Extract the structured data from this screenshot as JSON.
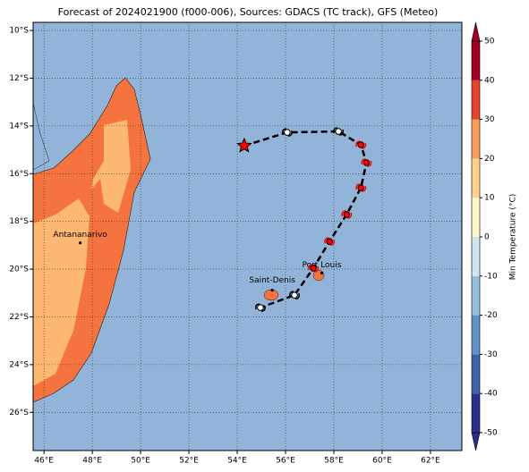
{
  "chart_data": {
    "type": "map",
    "title": "Forecast of 2024021900 (f000-006), Sources: GDACS (TC track), GFS (Meteo)",
    "xlim": [
      45.55,
      63.3
    ],
    "ylim": [
      -27.6,
      -9.66
    ],
    "xticks": [
      {
        "value": 46,
        "label": "46°E"
      },
      {
        "value": 48,
        "label": "48°E"
      },
      {
        "value": 50,
        "label": "50°E"
      },
      {
        "value": 52,
        "label": "52°E"
      },
      {
        "value": 54,
        "label": "54°E"
      },
      {
        "value": 56,
        "label": "56°E"
      },
      {
        "value": 58,
        "label": "58°E"
      },
      {
        "value": 60,
        "label": "60°E"
      },
      {
        "value": 62,
        "label": "62°E"
      }
    ],
    "yticks": [
      {
        "value": -10,
        "label": "10°S"
      },
      {
        "value": -12,
        "label": "12°S"
      },
      {
        "value": -14,
        "label": "14°S"
      },
      {
        "value": -16,
        "label": "16°S"
      },
      {
        "value": -18,
        "label": "18°S"
      },
      {
        "value": -20,
        "label": "20°S"
      },
      {
        "value": -22,
        "label": "22°S"
      },
      {
        "value": -24,
        "label": "24°S"
      },
      {
        "value": -26,
        "label": "26°S"
      }
    ],
    "grid": true,
    "track": {
      "x": [
        54.29,
        56.07,
        58.19,
        59.12,
        59.35,
        59.12,
        58.53,
        57.82,
        57.15,
        56.37,
        54.96
      ],
      "y": [
        -14.83,
        -14.27,
        -14.23,
        -14.79,
        -15.54,
        -16.59,
        -17.71,
        -18.84,
        -19.96,
        -21.09,
        -21.61
      ],
      "markers": [
        "star",
        "cyclone",
        "cyclone",
        "cyclone",
        "cyclone",
        "cyclone",
        "cyclone",
        "cyclone",
        "cyclone",
        "cyclone",
        "cyclone"
      ],
      "colors": [
        "#ff0000",
        "#ffffff",
        "#ffffff",
        "#ff0000",
        "#ff0000",
        "#ff0000",
        "#ff0000",
        "#ff0000",
        "#ff0000",
        "#ffffff",
        "#ffffff"
      ]
    },
    "cities": [
      {
        "name": "Antananarivo",
        "x": 47.5,
        "y": -18.9
      },
      {
        "name": "Port Louis",
        "x": 57.5,
        "y": -20.16
      },
      {
        "name": "Saint-Denis",
        "x": 55.45,
        "y": -20.88
      }
    ],
    "colorbar": {
      "label": "Min Temperature (°C)",
      "lim": [
        -50,
        50
      ],
      "ticks": [
        -50,
        -40,
        -30,
        -20,
        -10,
        0,
        10,
        20,
        30,
        40,
        50
      ],
      "bins": [
        -50,
        -40,
        -30,
        -20,
        -10,
        0,
        10,
        20,
        30,
        40,
        50
      ],
      "colors": [
        "#2b2d8c",
        "#3d62aa",
        "#5f93c5",
        "#95bedb",
        "#cde6f0",
        "#fdf7c9",
        "#fdd38c",
        "#fb9d5b",
        "#e5452c",
        "#a10026"
      ]
    }
  }
}
